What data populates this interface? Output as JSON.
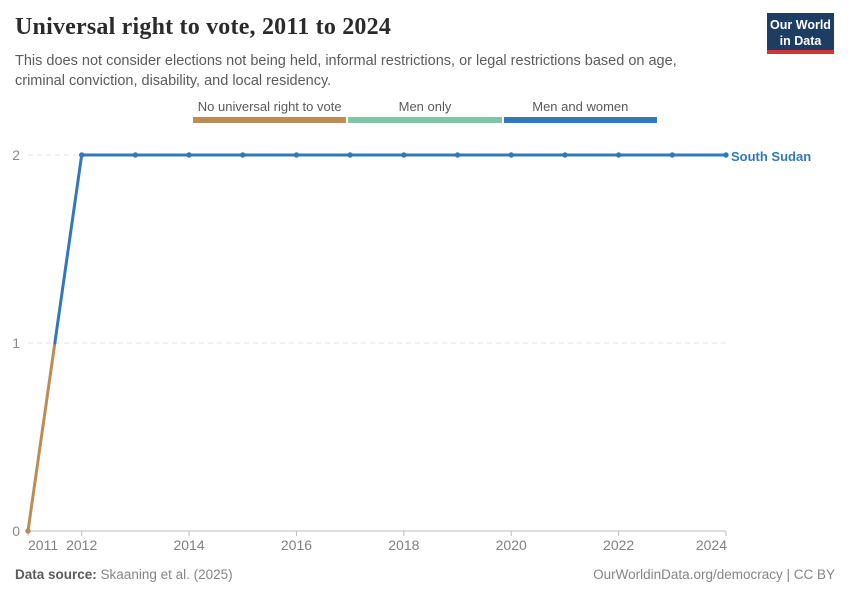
{
  "header": {
    "title": "Universal right to vote, 2011 to 2024",
    "subtitle": "This does not consider elections not being held, informal restrictions, or legal restrictions based on age, criminal conviction, disability, and local residency.",
    "logo": {
      "line1": "Our World",
      "line2": "in Data",
      "bg_color": "#1d3d63",
      "accent_color": "#d0352f"
    }
  },
  "legend": {
    "items": [
      {
        "label": "No universal right to vote",
        "color": "#bf8b54"
      },
      {
        "label": "Men only",
        "color": "#7fc6a4"
      },
      {
        "label": "Men and women",
        "color": "#3179ba"
      }
    ]
  },
  "chart_data": {
    "type": "line",
    "title": "Universal right to vote, 2011 to 2024",
    "xlabel": "",
    "ylabel": "",
    "xlim": [
      2011,
      2024
    ],
    "ylim": [
      0,
      2
    ],
    "x_ticks": [
      2011,
      2012,
      2014,
      2016,
      2018,
      2020,
      2022,
      2024
    ],
    "y_ticks": [
      0,
      1,
      2
    ],
    "grid": "horizontal-dashed",
    "legend_position": "top-center",
    "value_labels": {
      "0": "No universal right to vote",
      "1": "Men only",
      "2": "Men and women"
    },
    "value_colors": {
      "0": "#bf8b54",
      "1": "#7fc6a4",
      "2": "#3179ba"
    },
    "series": [
      {
        "name": "South Sudan",
        "color": "#3179ba",
        "x": [
          2011,
          2012,
          2013,
          2014,
          2015,
          2016,
          2017,
          2018,
          2019,
          2020,
          2021,
          2022,
          2023,
          2024
        ],
        "values": [
          0,
          2,
          2,
          2,
          2,
          2,
          2,
          2,
          2,
          2,
          2,
          2,
          2,
          2
        ]
      }
    ]
  },
  "footer": {
    "source_label": "Data source:",
    "source_value": "Skaaning et al. (2025)",
    "attribution": "OurWorldinData.org/democracy | CC BY"
  }
}
